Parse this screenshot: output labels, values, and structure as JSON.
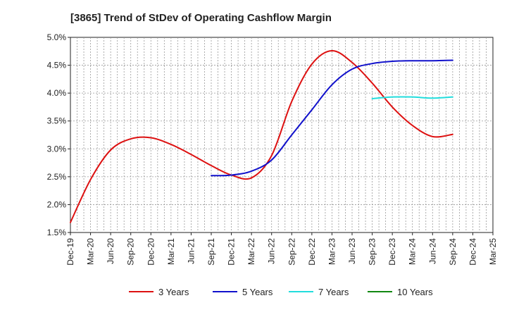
{
  "chart_data": {
    "type": "line",
    "title": "[3865]  Trend of StDev of Operating Cashflow Margin",
    "xlabel": "",
    "ylabel": "",
    "x_ticks": [
      "Dec-19",
      "Mar-20",
      "Jun-20",
      "Sep-20",
      "Dec-20",
      "Mar-21",
      "Jun-21",
      "Sep-21",
      "Dec-21",
      "Mar-22",
      "Jun-22",
      "Sep-22",
      "Dec-22",
      "Mar-23",
      "Jun-23",
      "Sep-23",
      "Dec-23",
      "Mar-24",
      "Jun-24",
      "Sep-24",
      "Dec-24",
      "Mar-25"
    ],
    "y_ticks": [
      "1.5%",
      "2.0%",
      "2.5%",
      "3.0%",
      "3.5%",
      "4.0%",
      "4.5%",
      "5.0%"
    ],
    "ylim": [
      1.5,
      5.0
    ],
    "grid": true,
    "legend_position": "bottom",
    "series": [
      {
        "name": "3 Years",
        "color": "#dd1111",
        "x": [
          "Dec-19",
          "Mar-20",
          "Jun-20",
          "Sep-20",
          "Dec-20",
          "Mar-21",
          "Jun-21",
          "Sep-21",
          "Dec-21",
          "Mar-22",
          "Jun-22",
          "Sep-22",
          "Dec-22",
          "Mar-23",
          "Jun-23",
          "Sep-23",
          "Dec-23",
          "Mar-24",
          "Jun-24",
          "Sep-24"
        ],
        "values": [
          1.68,
          2.45,
          2.98,
          3.18,
          3.2,
          3.08,
          2.9,
          2.7,
          2.53,
          2.48,
          2.88,
          3.85,
          4.52,
          4.76,
          4.55,
          4.18,
          3.75,
          3.42,
          3.22,
          3.26
        ]
      },
      {
        "name": "5 Years",
        "color": "#1111cc",
        "x": [
          "Sep-21",
          "Dec-21",
          "Mar-22",
          "Jun-22",
          "Sep-22",
          "Dec-22",
          "Mar-23",
          "Jun-23",
          "Sep-23",
          "Dec-23",
          "Mar-24",
          "Jun-24",
          "Sep-24"
        ],
        "values": [
          2.52,
          2.53,
          2.6,
          2.8,
          3.25,
          3.7,
          4.15,
          4.43,
          4.53,
          4.57,
          4.58,
          4.58,
          4.59
        ]
      },
      {
        "name": "7 Years",
        "color": "#22dddd",
        "x": [
          "Sep-23",
          "Dec-23",
          "Mar-24",
          "Jun-24",
          "Sep-24"
        ],
        "values": [
          3.9,
          3.93,
          3.93,
          3.91,
          3.93
        ]
      },
      {
        "name": "10 Years",
        "color": "#118811",
        "x": [],
        "values": []
      }
    ]
  }
}
